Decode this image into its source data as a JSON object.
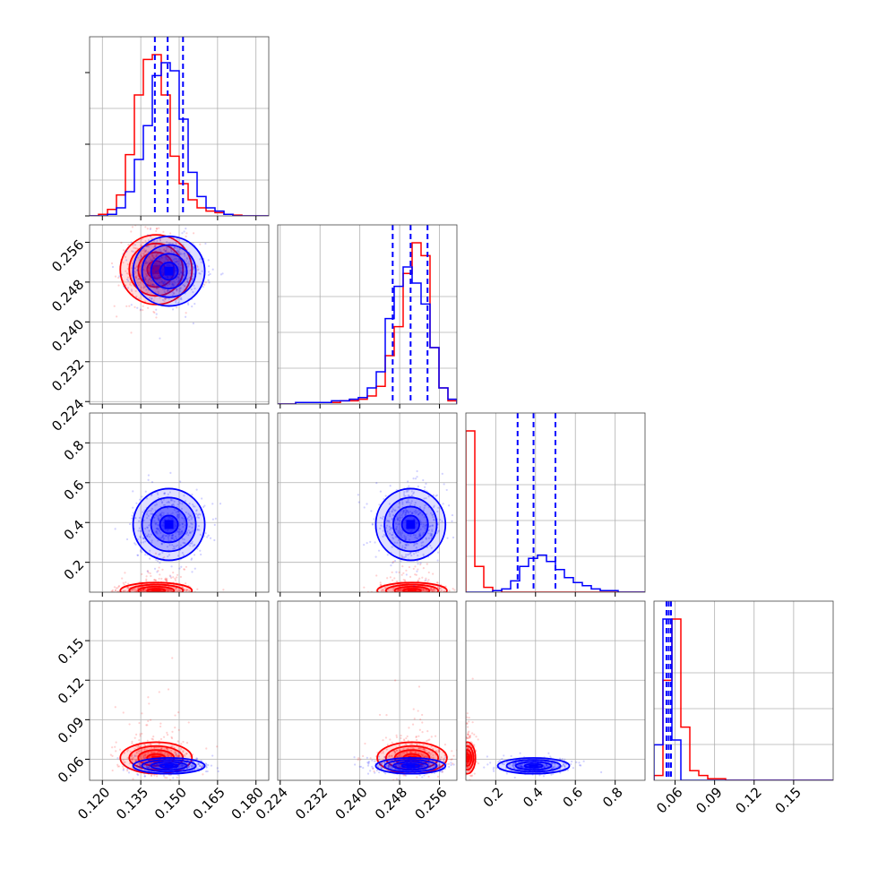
{
  "chart_data": {
    "type": "corner",
    "colors": {
      "red": "#ff0000",
      "blue": "#0000ff"
    },
    "series": [
      {
        "color": "red"
      },
      {
        "color": "blue"
      }
    ],
    "grid": true,
    "params": [
      {
        "range": [
          0.115,
          0.185
        ],
        "ticks": [
          "0.120",
          "0.135",
          "0.150",
          "0.165",
          "0.180"
        ],
        "tick_values": [
          0.12,
          0.135,
          0.15,
          0.165,
          0.18
        ]
      },
      {
        "range": [
          0.2235,
          0.2595
        ],
        "ticks": [
          "0.224",
          "0.232",
          "0.240",
          "0.248",
          "0.256"
        ],
        "tick_values": [
          0.224,
          0.232,
          0.24,
          0.248,
          0.256
        ]
      },
      {
        "range": [
          0.05,
          0.95
        ],
        "ticks": [
          "0.2",
          "0.4",
          "0.6",
          "0.8"
        ],
        "tick_values": [
          0.2,
          0.4,
          0.6,
          0.8
        ]
      },
      {
        "range": [
          0.044,
          0.18
        ],
        "ticks": [
          "0.06",
          "0.09",
          "0.12",
          "0.15"
        ],
        "tick_values": [
          0.06,
          0.09,
          0.12,
          0.15
        ]
      }
    ],
    "marginals": [
      {
        "bins": [
          0.115,
          0.1185,
          0.122,
          0.1255,
          0.129,
          0.1325,
          0.136,
          0.1395,
          0.143,
          0.1465,
          0.15,
          0.1535,
          0.157,
          0.1605,
          0.164,
          0.1675,
          0.171,
          0.1745,
          0.178,
          0.1815,
          0.185
        ],
        "red": [
          0,
          0.01,
          0.04,
          0.13,
          0.38,
          0.75,
          0.97,
          1.0,
          0.75,
          0.37,
          0.2,
          0.1,
          0.05,
          0.03,
          0.02,
          0.01,
          0.005,
          0,
          0,
          0
        ],
        "blue": [
          0,
          0,
          0.01,
          0.05,
          0.15,
          0.35,
          0.56,
          0.87,
          0.95,
          0.9,
          0.6,
          0.27,
          0.12,
          0.05,
          0.03,
          0.01,
          0,
          0,
          0,
          0
        ],
        "quantiles": [
          0.1405,
          0.1455,
          0.1515
        ]
      },
      {
        "bins": [
          0.2235,
          0.2253,
          0.2271,
          0.2289,
          0.2307,
          0.2325,
          0.2343,
          0.2361,
          0.2379,
          0.2397,
          0.2415,
          0.2433,
          0.2451,
          0.2469,
          0.2487,
          0.2505,
          0.2523,
          0.2541,
          0.2559,
          0.2577,
          0.2595
        ],
        "red": [
          0,
          0,
          0.01,
          0.01,
          0.01,
          0.01,
          0.01,
          0.02,
          0.02,
          0.03,
          0.05,
          0.11,
          0.3,
          0.48,
          0.81,
          1.0,
          0.92,
          0.35,
          0.1,
          0.02
        ],
        "blue": [
          0,
          0,
          0.01,
          0.01,
          0.01,
          0.01,
          0.02,
          0.02,
          0.03,
          0.04,
          0.1,
          0.2,
          0.53,
          0.73,
          0.85,
          0.75,
          0.62,
          0.35,
          0.1,
          0.03
        ],
        "quantiles": [
          0.2466,
          0.2502,
          0.2536
        ]
      },
      {
        "bins": [
          0.05,
          0.095,
          0.14,
          0.185,
          0.23,
          0.275,
          0.32,
          0.365,
          0.41,
          0.455,
          0.5,
          0.545,
          0.59,
          0.635,
          0.68,
          0.725,
          0.77,
          0.815,
          0.86,
          0.905,
          0.95
        ],
        "red": [
          1.0,
          0.16,
          0.03,
          0.01,
          0,
          0,
          0,
          0,
          0,
          0,
          0,
          0,
          0,
          0,
          0,
          0,
          0,
          0,
          0,
          0
        ],
        "blue": [
          0,
          0,
          0,
          0.01,
          0.02,
          0.07,
          0.16,
          0.21,
          0.23,
          0.19,
          0.14,
          0.09,
          0.06,
          0.04,
          0.02,
          0.01,
          0.01,
          0,
          0,
          0
        ],
        "quantiles": [
          0.31,
          0.39,
          0.5
        ]
      },
      {
        "bins": [
          0.044,
          0.0508,
          0.0576,
          0.0644,
          0.0712,
          0.078,
          0.0848,
          0.0916,
          0.0984,
          0.1052,
          0.112,
          0.1188,
          0.1256,
          0.1324,
          0.1392,
          0.146,
          0.1528,
          0.1596,
          0.1664,
          0.1732,
          0.18
        ],
        "red": [
          0.03,
          0.62,
          1.0,
          0.33,
          0.06,
          0.03,
          0.01,
          0.01,
          0,
          0,
          0,
          0,
          0,
          0,
          0,
          0,
          0,
          0,
          0,
          0
        ],
        "blue": [
          0.22,
          1.0,
          0.25,
          0,
          0,
          0,
          0,
          0,
          0,
          0,
          0,
          0,
          0,
          0,
          0,
          0,
          0,
          0,
          0,
          0
        ],
        "quantiles": [
          0.0535,
          0.0552,
          0.0569
        ]
      }
    ],
    "joint": {
      "red": {
        "mean": [
          0.141,
          0.2505,
          0.058,
          0.061
        ],
        "sd": [
          0.007,
          0.0035,
          0.02,
          0.006
        ]
      },
      "blue": {
        "mean": [
          0.146,
          0.2502,
          0.39,
          0.055
        ],
        "sd": [
          0.007,
          0.0035,
          0.09,
          0.003
        ]
      }
    }
  }
}
